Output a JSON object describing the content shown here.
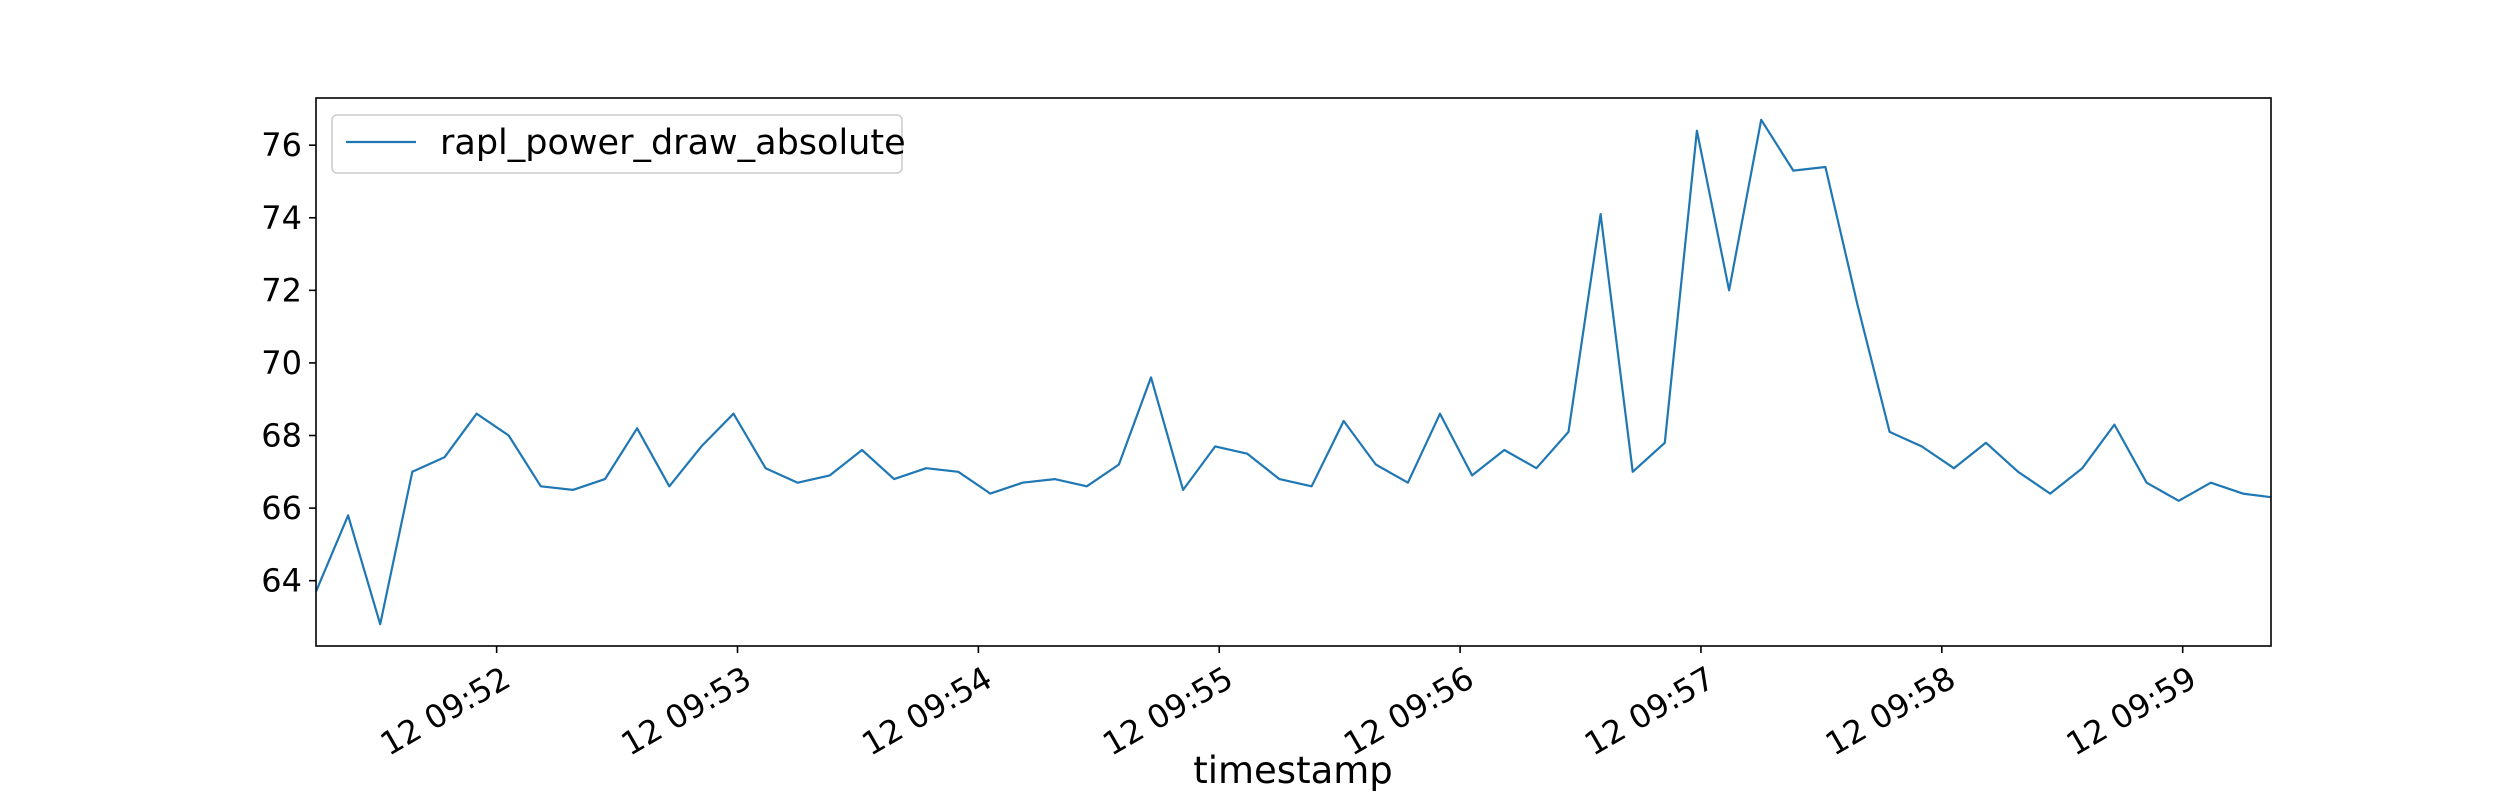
{
  "chart_data": {
    "type": "line",
    "title": "",
    "xlabel": "timestamp",
    "ylabel": "",
    "xlim": [
      "09:51:15",
      "09:59:22"
    ],
    "ylim": [
      62.2,
      77.3
    ],
    "grid": false,
    "legend_position": "top-left",
    "x_ticks": [
      {
        "time": "09:52:00",
        "label": "12 09:52"
      },
      {
        "time": "09:53:00",
        "label": "12 09:53"
      },
      {
        "time": "09:54:00",
        "label": "12 09:54"
      },
      {
        "time": "09:55:00",
        "label": "12 09:55"
      },
      {
        "time": "09:56:00",
        "label": "12 09:56"
      },
      {
        "time": "09:57:00",
        "label": "12 09:57"
      },
      {
        "time": "09:58:00",
        "label": "12 09:58"
      },
      {
        "time": "09:59:00",
        "label": "12 09:59"
      }
    ],
    "y_ticks": [
      64,
      66,
      68,
      70,
      72,
      74,
      76
    ],
    "series": [
      {
        "name": "rapl_power_draw_absolute",
        "color": "#1f77b4",
        "x": [
          "09:51:15",
          "09:51:23",
          "09:51:31",
          "09:51:39",
          "09:51:47",
          "09:51:55",
          "09:52:03",
          "09:52:11",
          "09:52:19",
          "09:52:27",
          "09:52:35",
          "09:52:43",
          "09:52:51",
          "09:52:59",
          "09:53:07",
          "09:53:15",
          "09:53:23",
          "09:53:31",
          "09:53:39",
          "09:53:47",
          "09:53:55",
          "09:54:03",
          "09:54:11",
          "09:54:19",
          "09:54:27",
          "09:54:35",
          "09:54:43",
          "09:54:51",
          "09:54:59",
          "09:55:07",
          "09:55:15",
          "09:55:23",
          "09:55:31",
          "09:55:39",
          "09:55:47",
          "09:55:55",
          "09:56:03",
          "09:56:11",
          "09:56:19",
          "09:56:27",
          "09:56:35",
          "09:56:43",
          "09:56:51",
          "09:56:59",
          "09:57:07",
          "09:57:15",
          "09:57:23",
          "09:57:31",
          "09:57:39",
          "09:57:47",
          "09:57:55",
          "09:58:03",
          "09:58:11",
          "09:58:19",
          "09:58:27",
          "09:58:35",
          "09:58:43",
          "09:58:51",
          "09:58:59",
          "09:59:07",
          "09:59:15",
          "09:59:22"
        ],
        "y": [
          63.7,
          65.8,
          62.8,
          67.0,
          67.4,
          68.6,
          68.0,
          66.6,
          66.5,
          66.8,
          68.2,
          66.6,
          67.7,
          68.6,
          67.1,
          66.7,
          66.9,
          67.6,
          66.8,
          67.1,
          67.0,
          66.4,
          66.7,
          66.8,
          66.6,
          67.2,
          69.6,
          66.5,
          67.7,
          67.5,
          66.8,
          66.6,
          68.4,
          67.2,
          66.7,
          68.6,
          66.9,
          67.6,
          67.1,
          68.1,
          74.1,
          67.0,
          67.8,
          76.4,
          72.0,
          76.7,
          75.3,
          75.4,
          71.6,
          68.1,
          67.7,
          67.1,
          67.8,
          67.0,
          66.4,
          67.1,
          68.3,
          66.7,
          66.2,
          66.7,
          66.4,
          66.3
        ]
      }
    ]
  }
}
